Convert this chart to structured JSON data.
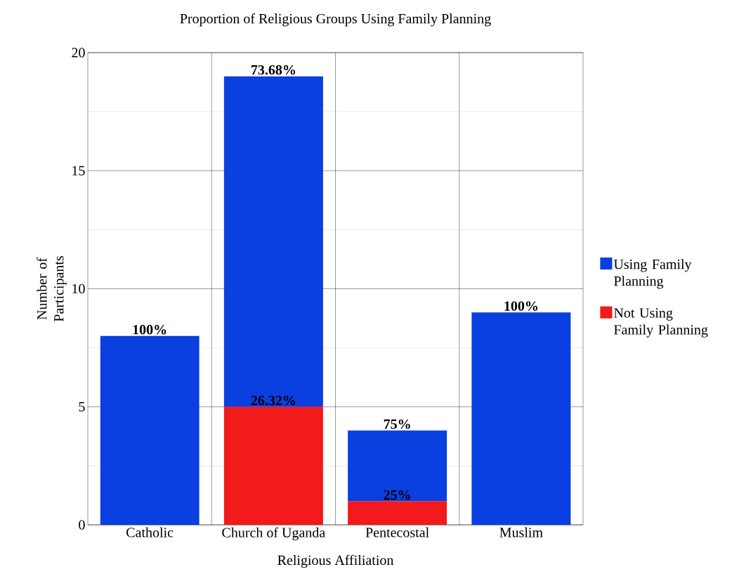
{
  "chart_data": {
    "type": "bar",
    "stacked": true,
    "title": "Proportion of Religious Groups Using Family Planning",
    "xlabel": "Religious Affiliation",
    "ylabel": "Number of Participants",
    "categories": [
      "Catholic",
      "Church of Uganda",
      "Pentecostal",
      "Muslim"
    ],
    "series": [
      {
        "name": "Not Using Family Planning",
        "color": "#f21a1a",
        "values": [
          0,
          5,
          1,
          0
        ]
      },
      {
        "name": "Using Family Planning",
        "color": "#0a3fe0",
        "values": [
          8,
          14,
          3,
          9
        ]
      }
    ],
    "annotations": [
      {
        "text": "100%",
        "x": "Catholic",
        "y": 8
      },
      {
        "text": "73.68%",
        "x": "Church of Uganda",
        "y": 19
      },
      {
        "text": "26.32%",
        "x": "Church of Uganda",
        "y": 5
      },
      {
        "text": "75%",
        "x": "Pentecostal",
        "y": 4
      },
      {
        "text": "25%",
        "x": "Pentecostal",
        "y": 1
      },
      {
        "text": "100%",
        "x": "Muslim",
        "y": 9
      }
    ],
    "ylim": [
      0,
      20
    ],
    "yticks": [
      0,
      5,
      10,
      15,
      20
    ],
    "grid": true,
    "legend": "right"
  }
}
